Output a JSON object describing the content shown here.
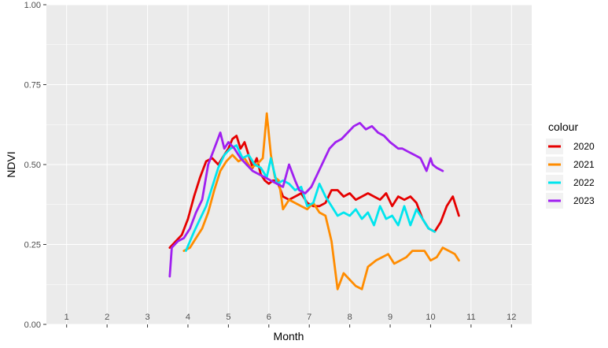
{
  "chart_data": {
    "type": "line",
    "xlabel": "Month",
    "ylabel": "NDVI",
    "xlim": [
      0.5,
      12.5
    ],
    "ylim": [
      0,
      1
    ],
    "y_ticks": [
      {
        "value": 0.0,
        "label": "0.00"
      },
      {
        "value": 0.25,
        "label": "0.25"
      },
      {
        "value": 0.5,
        "label": "0.50"
      },
      {
        "value": 0.75,
        "label": "0.75"
      },
      {
        "value": 1.0,
        "label": "1.00"
      }
    ],
    "month_labels": [
      "1",
      "2",
      "3",
      "4",
      "5",
      "6",
      "7",
      "8",
      "9",
      "10",
      "11",
      "12"
    ],
    "grid": true,
    "legend_title": "colour",
    "legend_position": "right",
    "series": [
      {
        "name": "2020",
        "color": "#e60000",
        "x": [
          3.55,
          3.7,
          3.85,
          4.0,
          4.15,
          4.3,
          4.45,
          4.6,
          4.75,
          4.9,
          5.0,
          5.1,
          5.2,
          5.3,
          5.4,
          5.5,
          5.6,
          5.7,
          5.8,
          5.9,
          6.0,
          6.1,
          6.2,
          6.35,
          6.5,
          6.65,
          6.8,
          6.95,
          7.1,
          7.25,
          7.4,
          7.55,
          7.7,
          7.85,
          8.0,
          8.15,
          8.3,
          8.45,
          8.6,
          8.75,
          8.9,
          9.05,
          9.2,
          9.35,
          9.5,
          9.65,
          9.8,
          9.95,
          10.1,
          10.25,
          10.4,
          10.55,
          10.7
        ],
        "y": [
          0.24,
          0.26,
          0.28,
          0.33,
          0.4,
          0.46,
          0.51,
          0.52,
          0.5,
          0.53,
          0.55,
          0.58,
          0.59,
          0.55,
          0.57,
          0.53,
          0.49,
          0.52,
          0.47,
          0.45,
          0.44,
          0.45,
          0.45,
          0.4,
          0.39,
          0.4,
          0.41,
          0.38,
          0.37,
          0.37,
          0.38,
          0.42,
          0.42,
          0.4,
          0.41,
          0.39,
          0.4,
          0.41,
          0.4,
          0.39,
          0.41,
          0.37,
          0.4,
          0.39,
          0.4,
          0.38,
          0.33,
          0.3,
          0.29,
          0.32,
          0.37,
          0.4,
          0.34
        ]
      },
      {
        "name": "2021",
        "color": "#ff8c00",
        "x": [
          3.9,
          4.05,
          4.2,
          4.35,
          4.5,
          4.65,
          4.8,
          4.95,
          5.1,
          5.25,
          5.4,
          5.55,
          5.7,
          5.85,
          5.95,
          6.05,
          6.15,
          6.25,
          6.35,
          6.5,
          6.65,
          6.8,
          6.95,
          7.1,
          7.25,
          7.4,
          7.55,
          7.7,
          7.85,
          8.0,
          8.15,
          8.3,
          8.45,
          8.55,
          8.65,
          8.8,
          8.95,
          9.1,
          9.25,
          9.4,
          9.55,
          9.7,
          9.85,
          10.0,
          10.15,
          10.3,
          10.45,
          10.6,
          10.7
        ],
        "y": [
          0.23,
          0.24,
          0.27,
          0.3,
          0.35,
          0.42,
          0.48,
          0.51,
          0.53,
          0.51,
          0.52,
          0.49,
          0.5,
          0.52,
          0.66,
          0.53,
          0.46,
          0.45,
          0.36,
          0.39,
          0.38,
          0.37,
          0.36,
          0.38,
          0.35,
          0.34,
          0.26,
          0.11,
          0.16,
          0.14,
          0.12,
          0.11,
          0.18,
          0.19,
          0.2,
          0.21,
          0.22,
          0.19,
          0.2,
          0.21,
          0.23,
          0.23,
          0.23,
          0.2,
          0.21,
          0.24,
          0.23,
          0.22,
          0.2
        ]
      },
      {
        "name": "2022",
        "color": "#00e5ee",
        "x": [
          3.95,
          4.05,
          4.15,
          4.3,
          4.45,
          4.6,
          4.75,
          4.9,
          5.05,
          5.2,
          5.35,
          5.5,
          5.65,
          5.8,
          5.95,
          6.05,
          6.2,
          6.35,
          6.5,
          6.65,
          6.8,
          6.95,
          7.1,
          7.25,
          7.4,
          7.55,
          7.7,
          7.85,
          8.0,
          8.15,
          8.3,
          8.45,
          8.6,
          8.75,
          8.9,
          9.05,
          9.2,
          9.35,
          9.5,
          9.65,
          9.8,
          9.95,
          10.1
        ],
        "y": [
          0.23,
          0.26,
          0.29,
          0.33,
          0.37,
          0.43,
          0.49,
          0.53,
          0.55,
          0.56,
          0.52,
          0.53,
          0.5,
          0.49,
          0.46,
          0.52,
          0.44,
          0.45,
          0.44,
          0.42,
          0.43,
          0.37,
          0.38,
          0.44,
          0.4,
          0.37,
          0.34,
          0.35,
          0.34,
          0.36,
          0.33,
          0.35,
          0.31,
          0.37,
          0.33,
          0.34,
          0.31,
          0.37,
          0.31,
          0.36,
          0.33,
          0.3,
          0.29
        ]
      },
      {
        "name": "2023",
        "color": "#a020f0",
        "x": [
          3.55,
          3.6,
          3.75,
          3.9,
          4.05,
          4.2,
          4.35,
          4.5,
          4.65,
          4.8,
          4.9,
          5.0,
          5.15,
          5.3,
          5.45,
          5.6,
          5.75,
          5.9,
          6.05,
          6.2,
          6.35,
          6.5,
          6.65,
          6.75,
          6.9,
          7.05,
          7.2,
          7.35,
          7.5,
          7.65,
          7.8,
          7.95,
          8.1,
          8.25,
          8.4,
          8.55,
          8.7,
          8.85,
          9.0,
          9.1,
          9.2,
          9.3,
          9.45,
          9.6,
          9.75,
          9.9,
          10.0,
          10.05,
          10.15,
          10.3
        ],
        "y": [
          0.15,
          0.24,
          0.26,
          0.27,
          0.3,
          0.35,
          0.39,
          0.5,
          0.55,
          0.6,
          0.55,
          0.57,
          0.55,
          0.52,
          0.5,
          0.48,
          0.47,
          0.46,
          0.45,
          0.44,
          0.43,
          0.5,
          0.45,
          0.42,
          0.41,
          0.43,
          0.47,
          0.51,
          0.55,
          0.57,
          0.58,
          0.6,
          0.62,
          0.63,
          0.61,
          0.62,
          0.6,
          0.59,
          0.57,
          0.56,
          0.55,
          0.55,
          0.54,
          0.53,
          0.52,
          0.48,
          0.52,
          0.5,
          0.49,
          0.48
        ]
      }
    ]
  }
}
